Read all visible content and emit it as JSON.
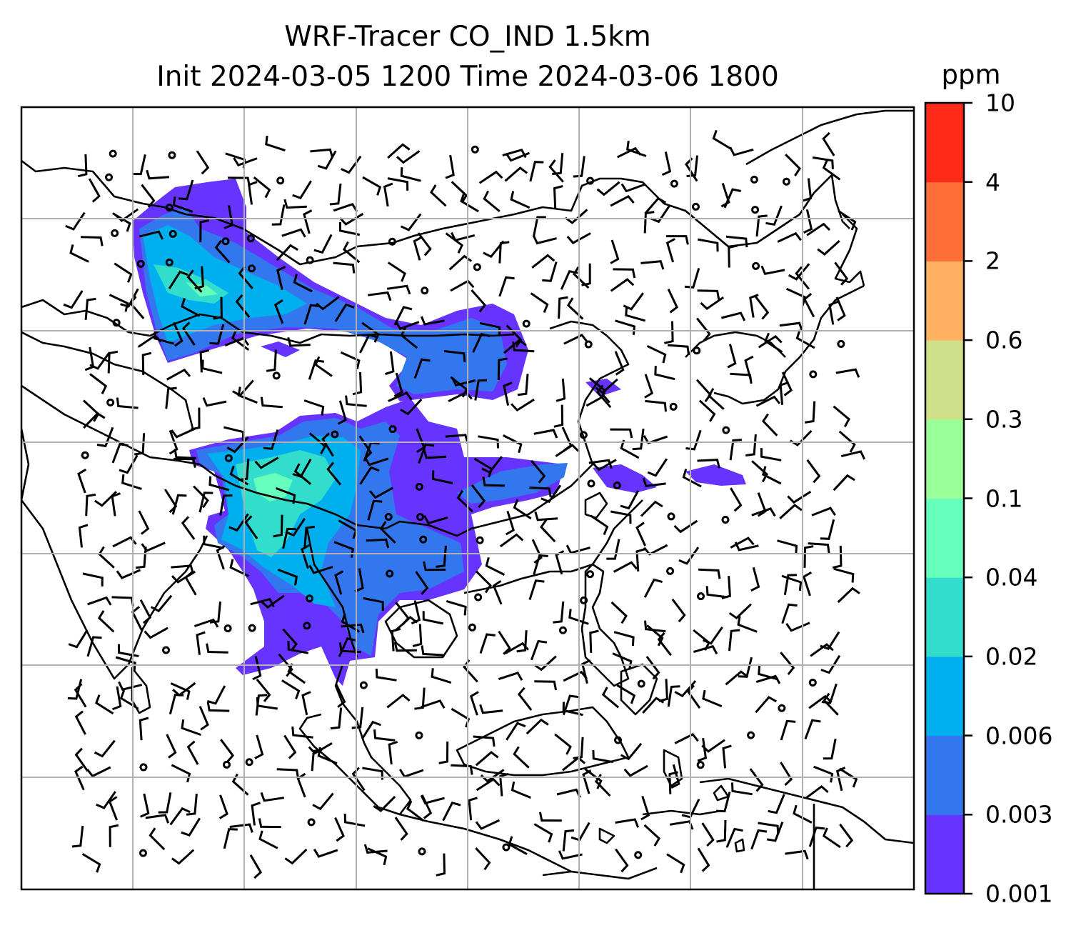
{
  "title": {
    "line1": "WRF-Tracer CO_IND 1.5km",
    "line2": "Init 2024-03-05 1200 Time 2024-03-06 1800"
  },
  "colorbar": {
    "unit": "ppm",
    "levels": [
      "0.001",
      "0.003",
      "0.006",
      "0.02",
      "0.04",
      "0.1",
      "0.3",
      "0.6",
      "2",
      "4",
      "10"
    ],
    "colors": [
      "#6633ff",
      "#3377ee",
      "#00b0ee",
      "#33ddcc",
      "#66ffbb",
      "#99ff99",
      "#d0e088",
      "#ffb060",
      "#ff7038",
      "#ff2a18"
    ]
  }
}
